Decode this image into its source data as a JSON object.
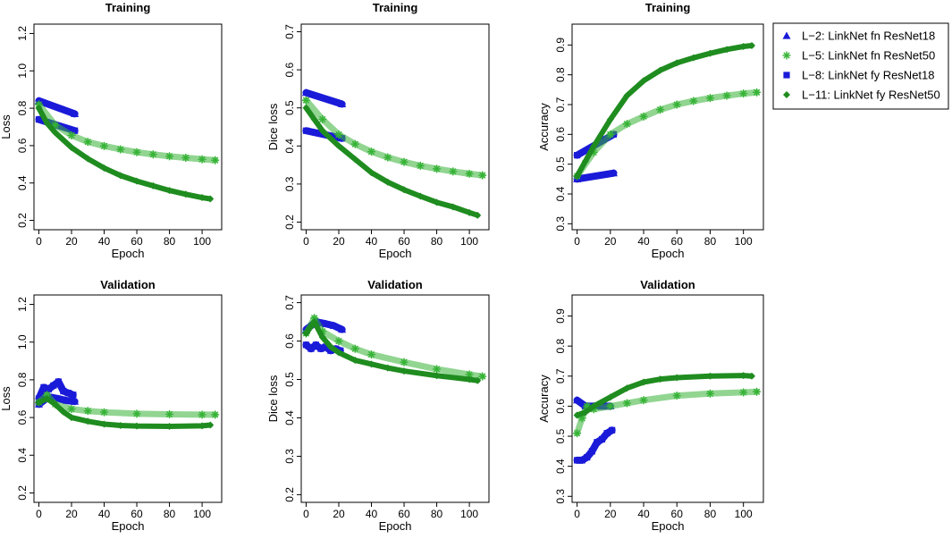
{
  "figure_title": "",
  "legend": {
    "placement": "top-right",
    "entries": [
      {
        "label": "L−2: LinkNet fn ResNet18",
        "series": "L-2",
        "marker": "triangle",
        "color": "#1a1ad9"
      },
      {
        "label": "L−5: LinkNet fn ResNet50",
        "series": "L-5",
        "marker": "asterisk",
        "color": "#36b336"
      },
      {
        "label": "L−8: LinkNet fy ResNet18",
        "series": "L-8",
        "marker": "square",
        "color": "#1a1ad9"
      },
      {
        "label": "L−11: LinkNet fy ResNet50",
        "series": "L-11",
        "marker": "diamond",
        "color": "#1f8c1f"
      }
    ]
  },
  "chart_data": [
    {
      "type": "scatter",
      "title": "Training",
      "xlabel": "Epoch",
      "ylabel": "Loss",
      "xlim": [
        -3,
        112
      ],
      "ylim": [
        0.15,
        1.25
      ],
      "x_ticks": [
        0,
        20,
        40,
        60,
        80,
        100
      ],
      "y_ticks": [
        0.2,
        0.4,
        0.6,
        0.8,
        1.0,
        1.2
      ],
      "y_tick_labels": [
        "0.2",
        "0.4",
        "0.6",
        "0.8",
        "1.0",
        "1.2"
      ],
      "series": [
        {
          "name": "L-2",
          "x": [
            0,
            22
          ],
          "values": [
            0.84,
            0.77
          ]
        },
        {
          "name": "L-8",
          "x": [
            0,
            22
          ],
          "values": [
            0.74,
            0.68
          ]
        },
        {
          "name": "L-5",
          "x": [
            0,
            10,
            20,
            30,
            40,
            50,
            60,
            70,
            80,
            90,
            100,
            108
          ],
          "values": [
            0.82,
            0.71,
            0.655,
            0.62,
            0.598,
            0.58,
            0.565,
            0.553,
            0.543,
            0.535,
            0.527,
            0.522
          ]
        },
        {
          "name": "L-11",
          "x": [
            0,
            5,
            10,
            20,
            30,
            40,
            50,
            60,
            70,
            80,
            90,
            100,
            105
          ],
          "values": [
            0.8,
            0.72,
            0.67,
            0.59,
            0.53,
            0.48,
            0.44,
            0.41,
            0.385,
            0.36,
            0.34,
            0.322,
            0.315
          ]
        }
      ]
    },
    {
      "type": "scatter",
      "title": "Training",
      "xlabel": "Epoch",
      "ylabel": "Dice loss",
      "xlim": [
        -3,
        112
      ],
      "ylim": [
        0.18,
        0.72
      ],
      "x_ticks": [
        0,
        20,
        40,
        60,
        80,
        100
      ],
      "y_ticks": [
        0.2,
        0.3,
        0.4,
        0.5,
        0.6,
        0.7
      ],
      "y_tick_labels": [
        "0.2",
        "0.3",
        "0.4",
        "0.5",
        "0.6",
        "0.7"
      ],
      "series": [
        {
          "name": "L-2",
          "x": [
            0,
            22
          ],
          "values": [
            0.54,
            0.51
          ]
        },
        {
          "name": "L-8",
          "x": [
            0,
            22
          ],
          "values": [
            0.44,
            0.42
          ]
        },
        {
          "name": "L-5",
          "x": [
            0,
            10,
            20,
            30,
            40,
            50,
            60,
            70,
            80,
            90,
            100,
            108
          ],
          "values": [
            0.52,
            0.47,
            0.43,
            0.405,
            0.385,
            0.37,
            0.358,
            0.348,
            0.34,
            0.333,
            0.327,
            0.323
          ]
        },
        {
          "name": "L-11",
          "x": [
            0,
            5,
            10,
            20,
            30,
            40,
            50,
            60,
            70,
            80,
            90,
            100,
            105
          ],
          "values": [
            0.5,
            0.47,
            0.44,
            0.4,
            0.365,
            0.33,
            0.305,
            0.285,
            0.268,
            0.252,
            0.24,
            0.225,
            0.218
          ]
        }
      ]
    },
    {
      "type": "scatter",
      "title": "Training",
      "xlabel": "Epoch",
      "ylabel": "Accuracy",
      "xlim": [
        -3,
        112
      ],
      "ylim": [
        0.28,
        0.97
      ],
      "x_ticks": [
        0,
        20,
        40,
        60,
        80,
        100
      ],
      "y_ticks": [
        0.3,
        0.4,
        0.5,
        0.6,
        0.7,
        0.8,
        0.9
      ],
      "y_tick_labels": [
        "0.3",
        "0.4",
        "0.5",
        "0.6",
        "0.7",
        "0.8",
        "0.9"
      ],
      "series": [
        {
          "name": "L-2",
          "x": [
            0,
            22
          ],
          "values": [
            0.45,
            0.47
          ]
        },
        {
          "name": "L-8",
          "x": [
            0,
            22
          ],
          "values": [
            0.53,
            0.6
          ]
        },
        {
          "name": "L-5",
          "x": [
            0,
            10,
            20,
            30,
            40,
            50,
            60,
            70,
            80,
            90,
            100,
            108
          ],
          "values": [
            0.46,
            0.54,
            0.6,
            0.635,
            0.66,
            0.683,
            0.7,
            0.712,
            0.722,
            0.73,
            0.737,
            0.741
          ]
        },
        {
          "name": "L-11",
          "x": [
            0,
            5,
            10,
            20,
            30,
            40,
            50,
            60,
            70,
            80,
            90,
            100,
            105
          ],
          "values": [
            0.46,
            0.51,
            0.56,
            0.65,
            0.73,
            0.78,
            0.815,
            0.84,
            0.857,
            0.872,
            0.885,
            0.895,
            0.898
          ]
        }
      ]
    },
    {
      "type": "scatter",
      "title": "Validation",
      "xlabel": "Epoch",
      "ylabel": "Loss",
      "xlim": [
        -3,
        112
      ],
      "ylim": [
        0.15,
        1.25
      ],
      "x_ticks": [
        0,
        20,
        40,
        60,
        80,
        100
      ],
      "y_ticks": [
        0.2,
        0.4,
        0.6,
        0.8,
        1.0,
        1.2
      ],
      "y_tick_labels": [
        "0.2",
        "0.4",
        "0.6",
        "0.8",
        "1.0",
        "1.2"
      ],
      "series": [
        {
          "name": "L-2",
          "x": [
            0,
            6,
            12,
            17,
            22
          ],
          "values": [
            0.67,
            0.71,
            0.7,
            0.69,
            0.685
          ]
        },
        {
          "name": "L-8",
          "x": [
            0,
            3,
            6,
            9,
            12,
            15,
            18,
            21
          ],
          "values": [
            0.7,
            0.76,
            0.75,
            0.77,
            0.79,
            0.74,
            0.73,
            0.72
          ]
        },
        {
          "name": "L-5",
          "x": [
            0,
            5,
            10,
            20,
            30,
            40,
            60,
            80,
            100,
            108
          ],
          "values": [
            0.68,
            0.72,
            0.67,
            0.645,
            0.635,
            0.628,
            0.62,
            0.617,
            0.615,
            0.615
          ]
        },
        {
          "name": "L-11",
          "x": [
            0,
            5,
            10,
            15,
            20,
            30,
            40,
            50,
            60,
            80,
            100,
            105
          ],
          "values": [
            0.68,
            0.7,
            0.67,
            0.63,
            0.6,
            0.58,
            0.565,
            0.558,
            0.555,
            0.553,
            0.556,
            0.56
          ]
        }
      ]
    },
    {
      "type": "scatter",
      "title": "Validation",
      "xlabel": "Epoch",
      "ylabel": "Dice loss",
      "xlim": [
        -3,
        112
      ],
      "ylim": [
        0.18,
        0.72
      ],
      "x_ticks": [
        0,
        20,
        40,
        60,
        80,
        100
      ],
      "y_ticks": [
        0.2,
        0.3,
        0.4,
        0.5,
        0.6,
        0.7
      ],
      "y_tick_labels": [
        "0.2",
        "0.3",
        "0.4",
        "0.5",
        "0.6",
        "0.7"
      ],
      "series": [
        {
          "name": "L-2",
          "x": [
            0,
            6,
            12,
            17,
            22
          ],
          "values": [
            0.63,
            0.65,
            0.645,
            0.64,
            0.63
          ]
        },
        {
          "name": "L-8",
          "x": [
            0,
            3,
            6,
            9,
            12,
            15,
            18,
            21
          ],
          "values": [
            0.59,
            0.58,
            0.59,
            0.58,
            0.585,
            0.575,
            0.58,
            0.575
          ]
        },
        {
          "name": "L-5",
          "x": [
            0,
            5,
            10,
            20,
            30,
            40,
            60,
            80,
            100,
            108
          ],
          "values": [
            0.62,
            0.66,
            0.625,
            0.6,
            0.58,
            0.565,
            0.545,
            0.527,
            0.513,
            0.508
          ]
        },
        {
          "name": "L-11",
          "x": [
            0,
            5,
            10,
            15,
            20,
            30,
            40,
            50,
            60,
            80,
            100,
            105
          ],
          "values": [
            0.62,
            0.65,
            0.61,
            0.585,
            0.57,
            0.55,
            0.54,
            0.53,
            0.522,
            0.51,
            0.5,
            0.497
          ]
        }
      ]
    },
    {
      "type": "scatter",
      "title": "Validation",
      "xlabel": "Epoch",
      "ylabel": "Accuracy",
      "xlim": [
        -3,
        112
      ],
      "ylim": [
        0.28,
        0.97
      ],
      "x_ticks": [
        0,
        20,
        40,
        60,
        80,
        100
      ],
      "y_ticks": [
        0.3,
        0.4,
        0.5,
        0.6,
        0.7,
        0.8,
        0.9
      ],
      "y_tick_labels": [
        "0.3",
        "0.4",
        "0.5",
        "0.6",
        "0.7",
        "0.8",
        "0.9"
      ],
      "series": [
        {
          "name": "L-2",
          "x": [
            0,
            5,
            10,
            15,
            20
          ],
          "values": [
            0.62,
            0.6,
            0.6,
            0.6,
            0.6
          ]
        },
        {
          "name": "L-8",
          "x": [
            0,
            3,
            6,
            9,
            12,
            15,
            18,
            21
          ],
          "values": [
            0.42,
            0.42,
            0.43,
            0.45,
            0.48,
            0.49,
            0.51,
            0.52
          ]
        },
        {
          "name": "L-5",
          "x": [
            0,
            3,
            6,
            10,
            20,
            30,
            40,
            60,
            80,
            100,
            108
          ],
          "values": [
            0.51,
            0.56,
            0.6,
            0.59,
            0.6,
            0.61,
            0.62,
            0.635,
            0.642,
            0.646,
            0.648
          ]
        },
        {
          "name": "L-11",
          "x": [
            0,
            5,
            10,
            20,
            30,
            40,
            50,
            60,
            80,
            100,
            105
          ],
          "values": [
            0.57,
            0.58,
            0.6,
            0.63,
            0.66,
            0.68,
            0.69,
            0.695,
            0.7,
            0.702,
            0.7
          ]
        }
      ]
    }
  ]
}
